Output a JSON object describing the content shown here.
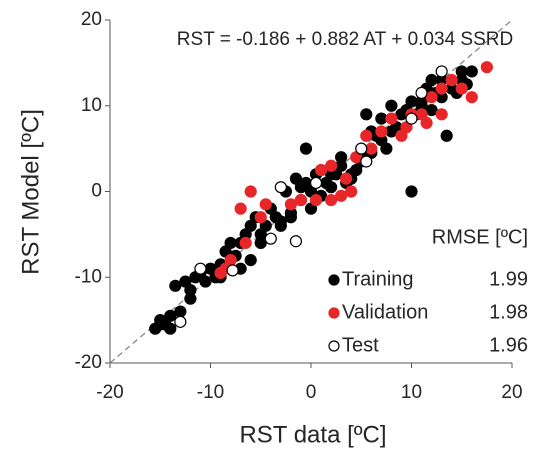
{
  "chart_data": {
    "type": "scatter",
    "annotation": "RST = -0.186 + 0.882 AT + 0.034 SSRD",
    "x_label": "RST data [ºC]",
    "y_label": "RST Model [ºC]",
    "rmse_label": "RMSE [ºC]",
    "xlim": [
      -20,
      20
    ],
    "ylim": [
      -20,
      20
    ],
    "xticks": [
      -20,
      -10,
      0,
      10,
      20
    ],
    "yticks": [
      -20,
      -10,
      0,
      10,
      20
    ],
    "identity_line": true,
    "series": [
      {
        "name": "Training",
        "color": "#000000",
        "fill": "#000000",
        "rmse": 1.99,
        "x": [
          -15.5,
          -15,
          -14.5,
          -14,
          -13.5,
          -13,
          -12.5,
          -12,
          -11.5,
          -11,
          -10.5,
          -10,
          -9.5,
          -9,
          -8.5,
          -8,
          -7.5,
          -7,
          -6.5,
          -6,
          -5.5,
          -5,
          -4.5,
          -4,
          -3.5,
          -3,
          -2.5,
          -2,
          -1.5,
          -1,
          -0.5,
          0,
          0.5,
          1,
          1.5,
          2,
          2.5,
          3,
          3.5,
          4,
          4.5,
          5,
          5.5,
          6,
          6.5,
          7,
          7.5,
          8,
          8.5,
          9,
          9.5,
          10,
          10.5,
          11,
          11.5,
          12,
          12.5,
          13,
          13.5,
          14,
          14.5,
          15,
          15.5,
          16,
          -15,
          -14,
          -12,
          -9,
          -7,
          -5,
          -3,
          -1,
          1,
          3,
          5,
          7,
          9,
          11,
          13,
          15,
          10,
          -6,
          0,
          2,
          -0.5,
          12,
          4,
          8,
          6,
          -2
        ],
        "y": [
          -16,
          -15,
          -15.5,
          -14.5,
          -11,
          -14,
          -10.5,
          -11.5,
          -10,
          -9.5,
          -10.5,
          -9,
          -10,
          -8.5,
          -7,
          -6,
          -7.5,
          -6,
          -5,
          -8,
          -3,
          -5,
          -4,
          -2,
          -3,
          -4,
          0,
          -2.5,
          1.5,
          0.5,
          5,
          0,
          2,
          -0.5,
          1,
          0.5,
          2,
          3,
          1,
          1.5,
          2.5,
          4,
          9,
          4.5,
          6.5,
          8.5,
          5,
          7,
          7.5,
          7,
          9.5,
          0,
          9,
          10,
          12,
          9.5,
          11.5,
          11,
          6.5,
          12,
          11.5,
          13,
          12.5,
          14,
          -15.5,
          -16,
          -12.5,
          -10,
          -9,
          -6,
          -3.5,
          -1,
          2.5,
          4,
          3.5,
          6,
          9,
          10.5,
          13,
          14,
          10.5,
          -4,
          -2,
          2,
          1,
          13,
          2,
          10,
          7,
          -3
        ]
      },
      {
        "name": "Validation",
        "color": "#e8262a",
        "fill": "#e8262a",
        "rmse": 1.98,
        "x": [
          -8.5,
          -8,
          -9,
          -6.5,
          -6,
          -4.5,
          -5,
          -7,
          -1,
          0.5,
          1,
          2,
          2,
          3,
          4,
          4.5,
          5.5,
          6,
          7,
          8,
          9,
          10,
          11,
          11.5,
          13,
          13,
          14,
          15,
          16,
          17.5,
          -2,
          3.5,
          9.5,
          12
        ],
        "y": [
          -9,
          -8,
          -9.5,
          -6,
          0,
          -1.5,
          -3,
          -2,
          -1,
          -1,
          2.5,
          3,
          -1,
          -0.5,
          0,
          4,
          6.5,
          5,
          7,
          8.5,
          6.5,
          9,
          9,
          8,
          12,
          9,
          13,
          12,
          11,
          14.5,
          -1.5,
          1.5,
          7.5,
          11
        ]
      },
      {
        "name": "Test",
        "color": "#000000",
        "fill": "#ffffff",
        "rmse": 1.96,
        "x": [
          -13,
          -11,
          -7.8,
          -4,
          -1.5,
          -3,
          0.5,
          5,
          10,
          11,
          13,
          5.5
        ],
        "y": [
          -15.2,
          -9,
          -9.2,
          -5.5,
          -5.8,
          0.5,
          1,
          5,
          8.5,
          11.5,
          14,
          3.5
        ]
      }
    ]
  }
}
